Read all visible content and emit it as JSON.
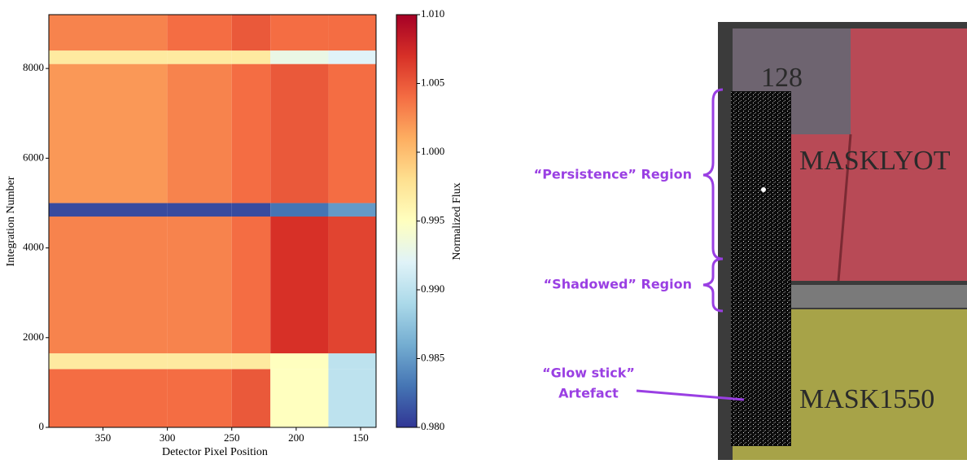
{
  "chart_data": {
    "type": "heatmap",
    "xlabel": "Detector Pixel Position",
    "ylabel": "Integration Number",
    "xlim": [
      392,
      138
    ],
    "xticks": [
      350,
      300,
      250,
      200,
      150
    ],
    "ylim": [
      0,
      9200
    ],
    "yticks": [
      0,
      2000,
      4000,
      6000,
      8000
    ],
    "xbins": [
      392,
      300,
      250,
      220,
      175,
      138
    ],
    "ybins": [
      0,
      1300,
      1650,
      4700,
      5000,
      8100,
      8400,
      9200
    ],
    "values": [
      [
        1.004,
        1.004,
        1.005,
        0.995,
        0.99
      ],
      [
        0.997,
        0.997,
        0.997,
        0.995,
        0.99
      ],
      [
        1.003,
        1.003,
        1.004,
        1.007,
        1.006
      ],
      [
        0.981,
        0.981,
        0.981,
        0.983,
        0.985
      ],
      [
        1.002,
        1.003,
        1.004,
        1.005,
        1.004
      ],
      [
        0.997,
        0.997,
        0.997,
        0.993,
        0.992
      ],
      [
        1.003,
        1.004,
        1.005,
        1.004,
        1.004
      ]
    ],
    "cmap": "RdYlBu",
    "colorbar": {
      "label": "Normalized Flux",
      "lim": [
        0.98,
        1.01
      ],
      "ticks": [
        {
          "value": 0.98,
          "label": "0.980"
        },
        0.985,
        {
          "value": 0.99,
          "label": "0.990"
        },
        0.995,
        {
          "value": 1.0,
          "label": "1.000"
        },
        1.005,
        {
          "value": 1.01,
          "label": "1.010"
        }
      ]
    }
  },
  "image_panel": {
    "box_label": "128",
    "upper_mask": "MASKLYOT",
    "lower_mask": "MASK1550",
    "annotations": {
      "persistence": "“Persistence” Region",
      "shadowed": "“Shadowed” Region",
      "glow_line1": "“Glow stick”",
      "glow_line2": "Artefact"
    }
  }
}
